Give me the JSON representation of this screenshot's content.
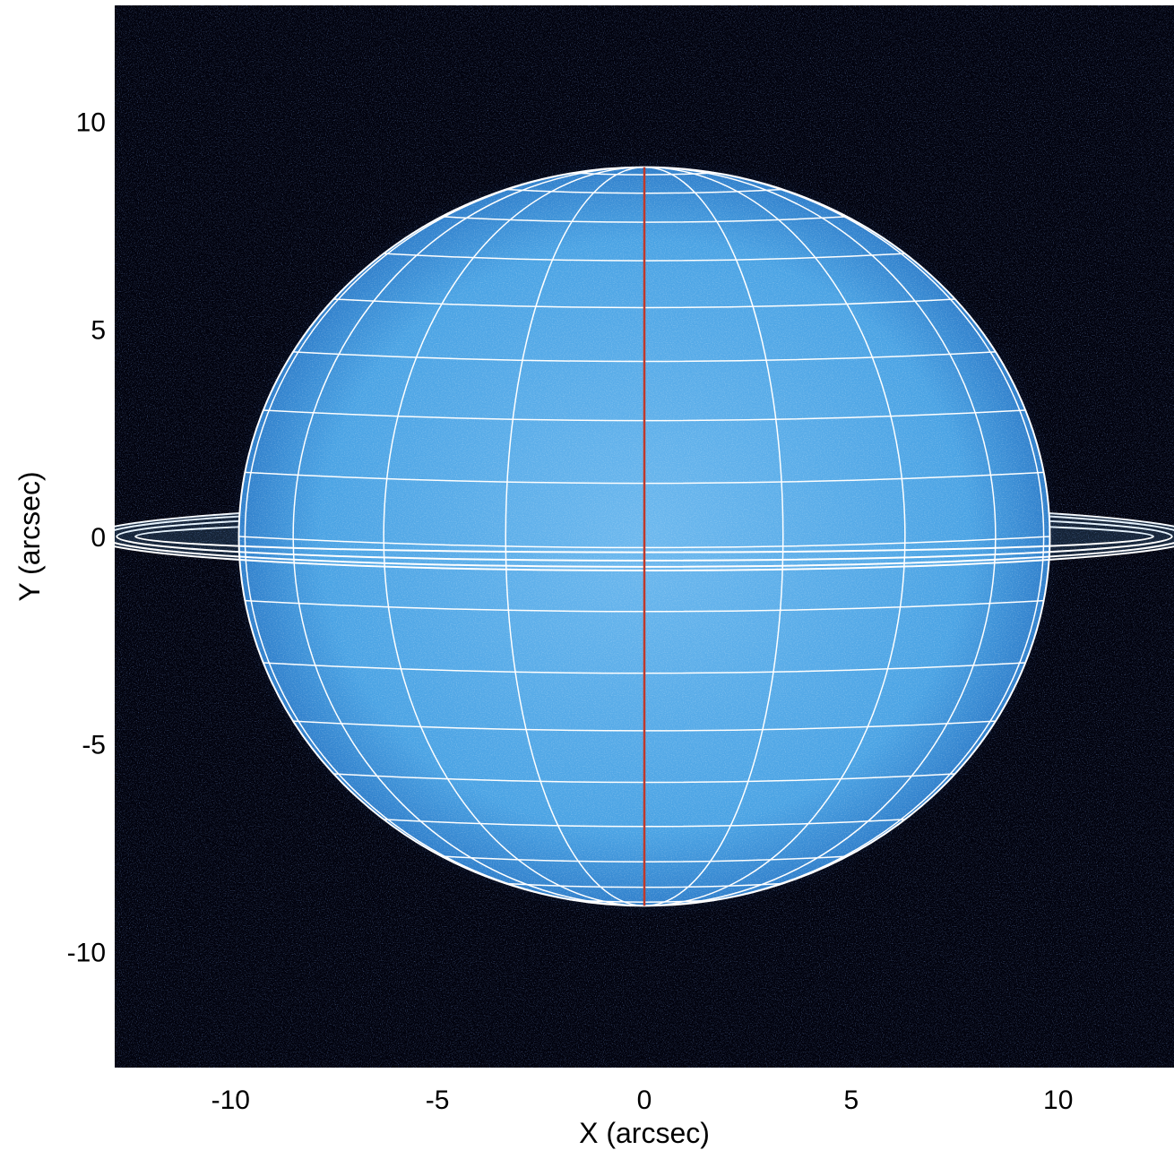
{
  "image": {
    "x_axis": {
      "label": "X (arcsec)",
      "range": [
        -12.8,
        12.8
      ],
      "ticks": [
        -10,
        -5,
        0,
        5,
        10
      ],
      "tick_labels": [
        "-10",
        "-5",
        "0",
        "5",
        "10"
      ]
    },
    "y_axis": {
      "label": "Y (arcsec)",
      "range": [
        -12.8,
        12.8
      ],
      "ticks": [
        10,
        5,
        0,
        -5,
        -10
      ],
      "tick_labels": [
        "10",
        "5",
        "0",
        "-5",
        "-10"
      ]
    },
    "planet": {
      "equatorial_radius": 9.8,
      "polar_radius": 8.9,
      "center": [
        0,
        0
      ]
    },
    "rings": [
      {
        "a": 12.3,
        "b": 0.38
      },
      {
        "a": 12.75,
        "b": 0.58
      },
      {
        "a": 13.1,
        "b": 0.73
      },
      {
        "a": 13.4,
        "b": 0.82
      }
    ],
    "colors": {
      "background": "#02030e",
      "disk": "#4aa3e4",
      "grid": "#ffffff",
      "central_meridian": "#c0392b"
    }
  }
}
